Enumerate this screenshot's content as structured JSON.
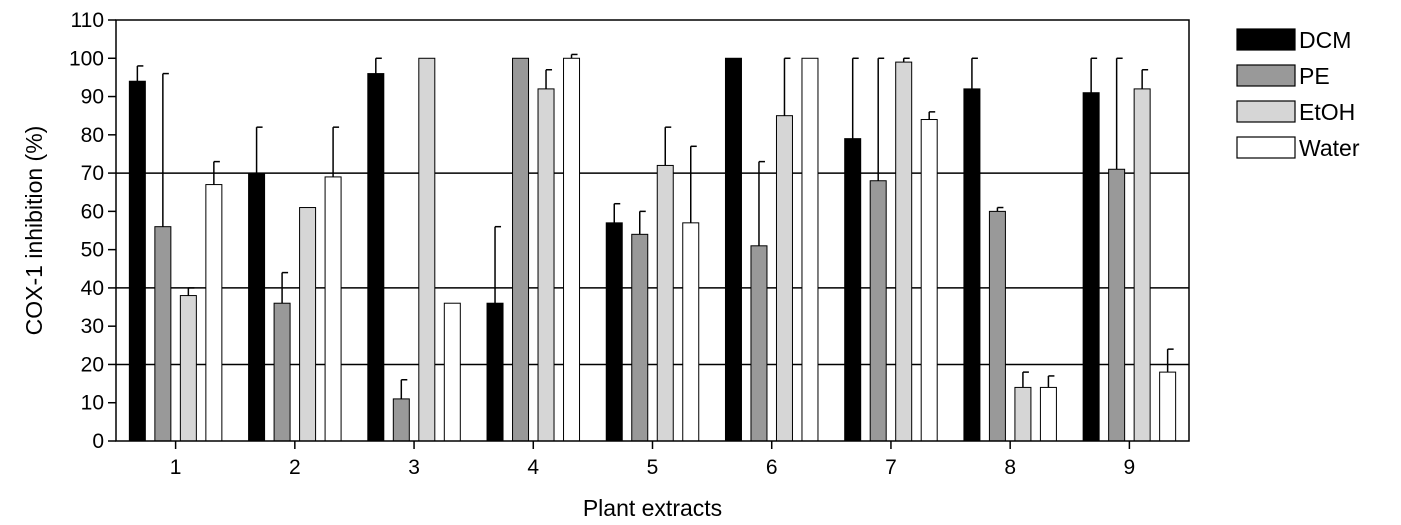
{
  "chart_data": {
    "type": "bar",
    "title": "",
    "xlabel": "Plant extracts",
    "ylabel": "COX-1 inhibition (%)",
    "ylim": [
      0,
      110
    ],
    "yticks": [
      0,
      10,
      20,
      30,
      40,
      50,
      60,
      70,
      80,
      90,
      100,
      110
    ],
    "reference_lines": [
      20,
      40,
      70
    ],
    "categories": [
      "1",
      "2",
      "3",
      "4",
      "5",
      "6",
      "7",
      "8",
      "9"
    ],
    "legend_position": "right",
    "series": [
      {
        "name": "DCM",
        "color": "#000000",
        "values": [
          94,
          70,
          96,
          36,
          57,
          100,
          79,
          92,
          91
        ],
        "errors": [
          4,
          12,
          4,
          20,
          5,
          0,
          21,
          8,
          9
        ]
      },
      {
        "name": "PE",
        "color": "#999999",
        "values": [
          56,
          36,
          11,
          100,
          54,
          51,
          68,
          60,
          71
        ],
        "errors": [
          40,
          8,
          5,
          0,
          6,
          22,
          32,
          1,
          29
        ]
      },
      {
        "name": "EtOH",
        "color": "#d6d6d6",
        "values": [
          38,
          61,
          100,
          92,
          72,
          85,
          99,
          14,
          92
        ],
        "errors": [
          2,
          0,
          0,
          5,
          10,
          15,
          1,
          4,
          5
        ]
      },
      {
        "name": "Water",
        "color": "#ffffff",
        "values": [
          67,
          69,
          36,
          100,
          57,
          100,
          84,
          14,
          18
        ],
        "errors": [
          6,
          13,
          0,
          1,
          20,
          0,
          2,
          3,
          6
        ]
      }
    ]
  }
}
